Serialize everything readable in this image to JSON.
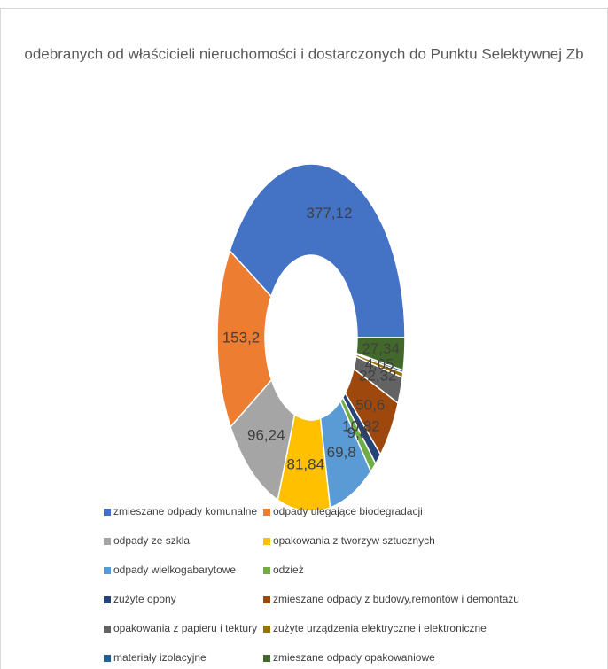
{
  "chart_data": {
    "type": "donut",
    "title": "odebranych od właścicieli nieruchomości i dostarczonych do Punktu Selektywnej Zb",
    "categories": [
      "zmieszane odpady komunalne",
      "odpady ulegające biodegradacji",
      "odpady ze szkła",
      "opakowania z tworzyw sztucznych",
      "odpady wielkogabarytowe",
      "odzież",
      "zużyte opony",
      "zmieszane odpady z budowy,remontów i demontażu",
      "opakowania z papieru i tektury",
      "zużyte urządzenia  elektryczne i elektroniczne",
      "materiały izolacyjne",
      "zmieszane odpady opakowaniowe"
    ],
    "values": [
      377.12,
      153.2,
      96.24,
      81.84,
      69.8,
      9.8,
      10.82,
      50.6,
      22.32,
      4.05,
      2,
      27.34
    ],
    "value_labels": [
      "377,12",
      "153,2",
      "96,24",
      "81,84",
      "69,8",
      "9,8",
      "10,82",
      "50,6",
      "22,32",
      "4,05",
      null,
      "27,34"
    ],
    "colors": [
      "#4472c4",
      "#ed7d31",
      "#a5a5a5",
      "#ffc000",
      "#5b9bd5",
      "#70ad47",
      "#264478",
      "#9e480e",
      "#636363",
      "#997300",
      "#255e91",
      "#43682b"
    ],
    "legend": "bottom"
  }
}
